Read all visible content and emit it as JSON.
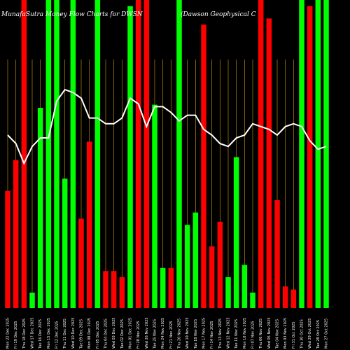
{
  "chart_data": {
    "type": "bar",
    "title_left": "MunafaSutra  Money Flow  Charts for DWSN",
    "title_right": "(Dawson  Geophysical C",
    "colors": {
      "up": "#00ff00",
      "down": "#ff0000",
      "line": "#ffffff",
      "grid": "#b8860b",
      "background": "#000000"
    },
    "ylim": [
      0,
      100
    ],
    "line_ylim": [
      0,
      100
    ],
    "bars": [
      {
        "date": "Mon 22 Dec 2025",
        "volume": 38,
        "direction": "down",
        "line": 61
      },
      {
        "date": "Fri 19 Dec 2025",
        "volume": 48,
        "direction": "down",
        "line": 58
      },
      {
        "date": "Thu 18 Dec 2025",
        "volume": 100,
        "direction": "down",
        "line": 51
      },
      {
        "date": "Wed 17 Dec 2025",
        "volume": 5,
        "direction": "up",
        "line": 57
      },
      {
        "date": "Tue 16 Dec 2025",
        "volume": 65,
        "direction": "up",
        "line": 60
      },
      {
        "date": "Mon 15 Dec 2025",
        "volume": 100,
        "direction": "up",
        "line": 60
      },
      {
        "date": "Fri 12 Dec 2025",
        "volume": 100,
        "direction": "up",
        "line": 73
      },
      {
        "date": "Thu 11 Dec 2025",
        "volume": 42,
        "direction": "up",
        "line": 77
      },
      {
        "date": "Wed 10 Dec 2025",
        "volume": 100,
        "direction": "up",
        "line": 76
      },
      {
        "date": "Tue 09 Dec 2025",
        "volume": 29,
        "direction": "down",
        "line": 74
      },
      {
        "date": "Mon 08 Dec 2025",
        "volume": 54,
        "direction": "down",
        "line": 67
      },
      {
        "date": "Fri 05 Dec 2025",
        "volume": 100,
        "direction": "up",
        "line": 67
      },
      {
        "date": "Thu 04 Dec 2025",
        "volume": 12,
        "direction": "down",
        "line": 65
      },
      {
        "date": "Wed 03 Dec 2025",
        "volume": 12,
        "direction": "down",
        "line": 65
      },
      {
        "date": "Tue 02 Dec 2025",
        "volume": 10,
        "direction": "down",
        "line": 67
      },
      {
        "date": "Mon 01 Dec 2025",
        "volume": 98,
        "direction": "up",
        "line": 74
      },
      {
        "date": "Fri 28 Nov 2025",
        "volume": 100,
        "direction": "down",
        "line": 72
      },
      {
        "date": "Wed 26 Nov 2025",
        "volume": 100,
        "direction": "down",
        "line": 64
      },
      {
        "date": "Tue 25 Nov 2025",
        "volume": 66,
        "direction": "up",
        "line": 71
      },
      {
        "date": "Mon 24 Nov 2025",
        "volume": 13,
        "direction": "up",
        "line": 71
      },
      {
        "date": "Fri 21 Nov 2025",
        "volume": 13,
        "direction": "down",
        "line": 69
      },
      {
        "date": "Thu 20 Nov 2025",
        "volume": 100,
        "direction": "up",
        "line": 66
      },
      {
        "date": "Wed 19 Nov 2025",
        "volume": 27,
        "direction": "up",
        "line": 68
      },
      {
        "date": "Tue 18 Nov 2025",
        "volume": 31,
        "direction": "up",
        "line": 68
      },
      {
        "date": "Mon 17 Nov 2025",
        "volume": 92,
        "direction": "down",
        "line": 63
      },
      {
        "date": "Fri 14 Nov 2025",
        "volume": 20,
        "direction": "down",
        "line": 61
      },
      {
        "date": "Thu 13 Nov 2025",
        "volume": 28,
        "direction": "down",
        "line": 58
      },
      {
        "date": "Wed 12 Nov 2025",
        "volume": 10,
        "direction": "up",
        "line": 57
      },
      {
        "date": "Tue 11 Nov 2025",
        "volume": 49,
        "direction": "up",
        "line": 60
      },
      {
        "date": "Mon 10 Nov 2025",
        "volume": 14,
        "direction": "up",
        "line": 61
      },
      {
        "date": "Fri 07 Nov 2025",
        "volume": 5,
        "direction": "up",
        "line": 65
      },
      {
        "date": "Thu 06 Nov 2025",
        "volume": 100,
        "direction": "down",
        "line": 64
      },
      {
        "date": "Wed 05 Nov 2025",
        "volume": 94,
        "direction": "down",
        "line": 63
      },
      {
        "date": "Tue 04 Nov 2025",
        "volume": 35,
        "direction": "down",
        "line": 61
      },
      {
        "date": "Mon 03 Nov 2025",
        "volume": 7,
        "direction": "down",
        "line": 64
      },
      {
        "date": "Fri 31 Oct 2025",
        "volume": 6,
        "direction": "down",
        "line": 65
      },
      {
        "date": "Thu 30 Oct 2025",
        "volume": 100,
        "direction": "up",
        "line": 64
      },
      {
        "date": "Wed 29 Oct 2025",
        "volume": 98,
        "direction": "down",
        "line": 59
      },
      {
        "date": "Tue 28 Oct 2025",
        "volume": 100,
        "direction": "up",
        "line": 56
      },
      {
        "date": "Mon 27 Oct 2025",
        "volume": 100,
        "direction": "up",
        "line": 57
      }
    ]
  }
}
